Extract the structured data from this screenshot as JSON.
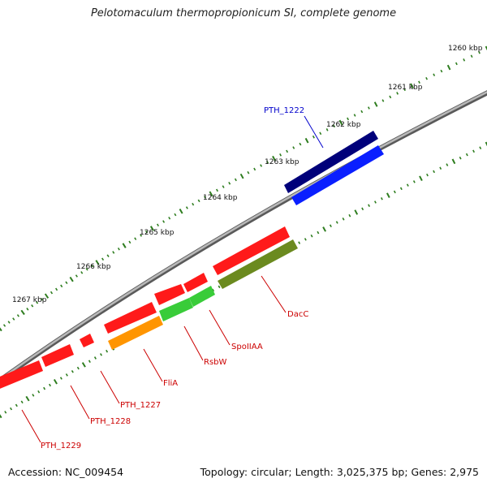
{
  "title": "Pelotomaculum thermopropionicum SI, complete genome",
  "footer": {
    "accession": "Accession: NC_009454",
    "summary": "Topology: circular; Length: 3,025,375 bp; Genes: 2,975"
  },
  "colors": {
    "backbone": "#8c8c8c",
    "tick": "#2e7d1f",
    "gene_red": "#ff1a1a",
    "gene_blue_dark": "#00007a",
    "gene_blue": "#0a1fff",
    "gene_green": "#39cc39",
    "gene_orange": "#ff9500",
    "gene_olive": "#6b8a1f",
    "label_red": "#cc0000",
    "label_blue": "#0000cc"
  },
  "kbp_labels": [
    "1260 kbp",
    "1261 kbp",
    "1262 kbp",
    "1263 kbp",
    "1264 kbp",
    "1265 kbp",
    "1266 kbp",
    "1267 kbp"
  ],
  "genes": [
    {
      "label": "PTH_1222",
      "color": "blue"
    },
    {
      "label": "DacC",
      "color": "red"
    },
    {
      "label": "SpoIIAA",
      "color": "red"
    },
    {
      "label": "RsbW",
      "color": "red"
    },
    {
      "label": "FliA",
      "color": "red"
    },
    {
      "label": "PTH_1227",
      "color": "red"
    },
    {
      "label": "PTH_1228",
      "color": "red"
    },
    {
      "label": "PTH_1229",
      "color": "red"
    }
  ]
}
